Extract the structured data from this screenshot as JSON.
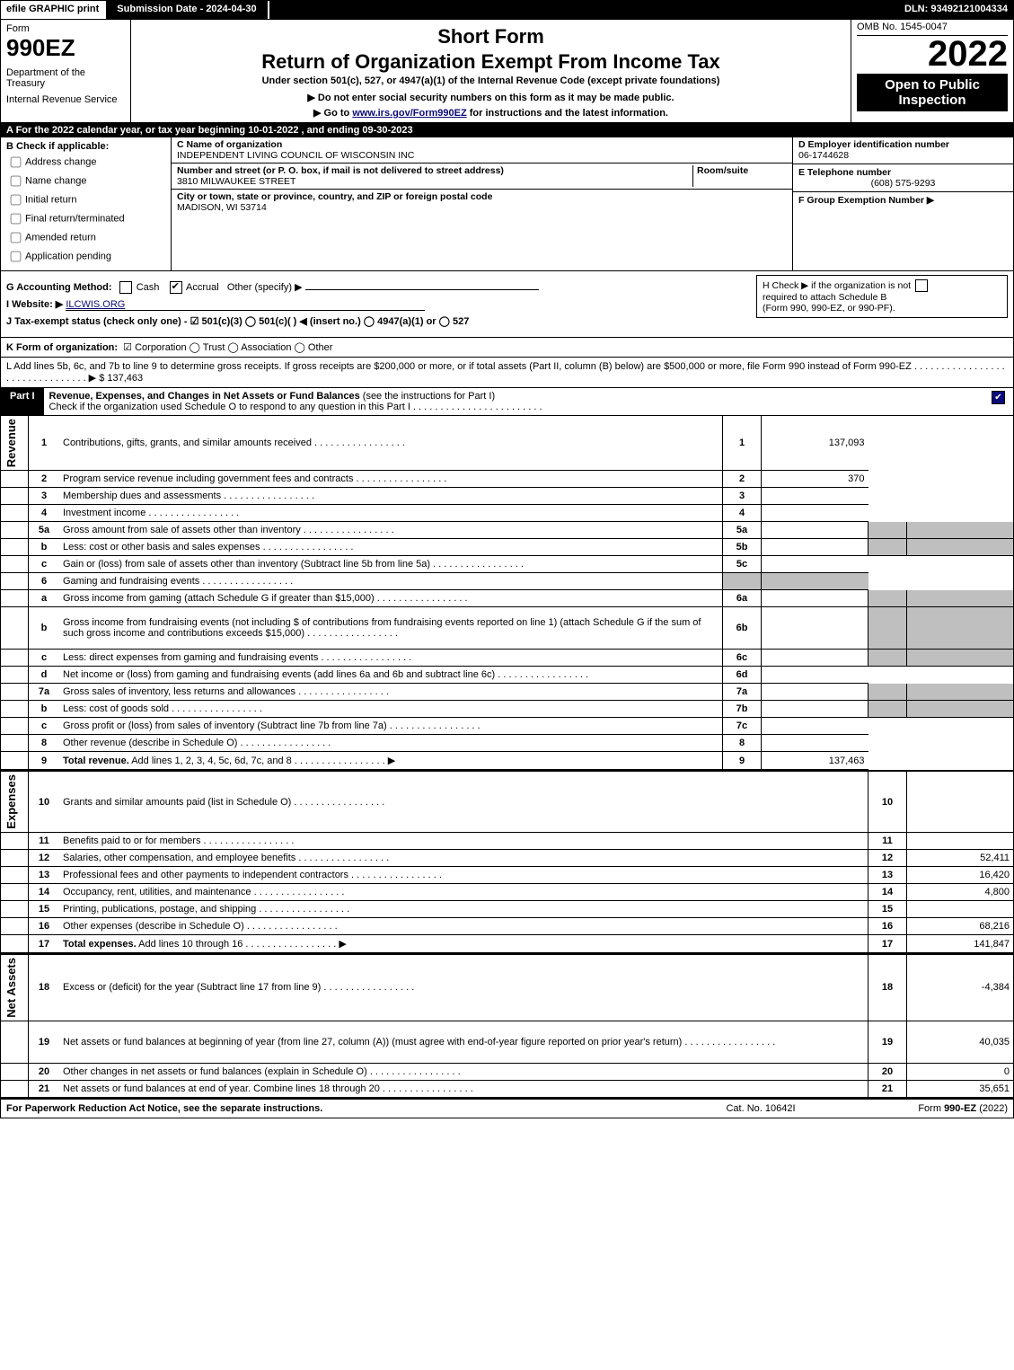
{
  "topbar": {
    "efile": "efile GRAPHIC print",
    "submission": "Submission Date - 2024-04-30",
    "dln": "DLN: 93492121004334"
  },
  "header": {
    "form_label": "Form",
    "form_number": "990EZ",
    "dept_line1": "Department of the Treasury",
    "dept_line2": "Internal Revenue Service",
    "short_form": "Short Form",
    "title": "Return of Organization Exempt From Income Tax",
    "under": "Under section 501(c), 527, or 4947(a)(1) of the Internal Revenue Code (except private foundations)",
    "warn": "▶ Do not enter social security numbers on this form as it may be made public.",
    "goto_pre": "▶ Go to ",
    "goto_link": "www.irs.gov/Form990EZ",
    "goto_post": " for instructions and the latest information.",
    "omb": "OMB No. 1545-0047",
    "year": "2022",
    "open": "Open to Public Inspection"
  },
  "section_a": "A  For the 2022 calendar year, or tax year beginning 10-01-2022 , and ending 09-30-2023",
  "b": {
    "head": "B  Check if applicable:",
    "items": [
      "Address change",
      "Name change",
      "Initial return",
      "Final return/terminated",
      "Amended return",
      "Application pending"
    ]
  },
  "c": {
    "name_label": "C Name of organization",
    "name": "INDEPENDENT LIVING COUNCIL OF WISCONSIN INC",
    "street_label": "Number and street (or P. O. box, if mail is not delivered to street address)",
    "street": "3810 MILWAUKEE STREET",
    "room_label": "Room/suite",
    "city_label": "City or town, state or province, country, and ZIP or foreign postal code",
    "city": "MADISON, WI  53714"
  },
  "d": {
    "ein_label": "D Employer identification number",
    "ein": "06-1744628",
    "phone_label": "E Telephone number",
    "phone": "(608) 575-9293",
    "group_label": "F Group Exemption Number   ▶"
  },
  "ghijk": {
    "g": "G Accounting Method:",
    "g_cash": "Cash",
    "g_accrual": "Accrual",
    "g_other": "Other (specify) ▶",
    "h_line1": "H  Check ▶       if the organization is not",
    "h_line2": "required to attach Schedule B",
    "h_line3": "(Form 990, 990-EZ, or 990-PF).",
    "i_label": "I Website: ▶",
    "i_value": "ILCWIS.ORG",
    "j": "J Tax-exempt status (check only one) -  ☑ 501(c)(3)  ◯ 501(c)(  ) ◀ (insert no.)  ◯ 4947(a)(1) or  ◯ 527",
    "j_sub": ""
  },
  "k": {
    "pre": "K Form of organization:",
    "items": "☑ Corporation   ◯ Trust   ◯ Association   ◯ Other"
  },
  "l": {
    "text": "L Add lines 5b, 6c, and 7b to line 9 to determine gross receipts. If gross receipts are $200,000 or more, or if total assets (Part II, column (B) below) are $500,000 or more, file Form 990 instead of Form 990-EZ  . . . . . . . . . . . . . . . . . . . . . . . . . . . . . . . .  ▶ $ 137,463"
  },
  "part1": {
    "tab": "Part I",
    "title_bold": "Revenue, Expenses, and Changes in Net Assets or Fund Balances",
    "title_rest": " (see the instructions for Part I)",
    "subtitle": "Check if the organization used Schedule O to respond to any question in this Part I . . . . . . . . . . . . . . . . . . . . . . . ."
  },
  "side_labels": {
    "revenue": "Revenue",
    "expenses": "Expenses",
    "netassets": "Net Assets"
  },
  "rows": [
    {
      "n": "1",
      "desc": "Contributions, gifts, grants, and similar amounts received",
      "rn": "1",
      "rv": "137,093"
    },
    {
      "n": "2",
      "desc": "Program service revenue including government fees and contracts",
      "rn": "2",
      "rv": "370"
    },
    {
      "n": "3",
      "desc": "Membership dues and assessments",
      "rn": "3",
      "rv": ""
    },
    {
      "n": "4",
      "desc": "Investment income",
      "rn": "4",
      "rv": ""
    },
    {
      "n": "5a",
      "desc": "Gross amount from sale of assets other than inventory",
      "mn": "5a",
      "mv": "",
      "grey": true
    },
    {
      "n": "b",
      "desc": "Less: cost or other basis and sales expenses",
      "mn": "5b",
      "mv": "",
      "grey": true
    },
    {
      "n": "c",
      "desc": "Gain or (loss) from sale of assets other than inventory (Subtract line 5b from line 5a)",
      "rn": "5c",
      "rv": ""
    },
    {
      "n": "6",
      "desc": "Gaming and fundraising events",
      "grey": true,
      "noright": true
    },
    {
      "n": "a",
      "desc": "Gross income from gaming (attach Schedule G if greater than $15,000)",
      "mn": "6a",
      "mv": "",
      "grey": true
    },
    {
      "n": "b",
      "desc": "Gross income from fundraising events (not including $                    of contributions from fundraising events reported on line 1) (attach Schedule G if the sum of such gross income and contributions exceeds $15,000)",
      "mn": "6b",
      "mv": "",
      "grey": true,
      "tall": true
    },
    {
      "n": "c",
      "desc": "Less: direct expenses from gaming and fundraising events",
      "mn": "6c",
      "mv": "",
      "grey": true
    },
    {
      "n": "d",
      "desc": "Net income or (loss) from gaming and fundraising events (add lines 6a and 6b and subtract line 6c)",
      "rn": "6d",
      "rv": ""
    },
    {
      "n": "7a",
      "desc": "Gross sales of inventory, less returns and allowances",
      "mn": "7a",
      "mv": "",
      "grey": true
    },
    {
      "n": "b",
      "desc": "Less: cost of goods sold",
      "mn": "7b",
      "mv": "",
      "grey": true
    },
    {
      "n": "c",
      "desc": "Gross profit or (loss) from sales of inventory (Subtract line 7b from line 7a)",
      "rn": "7c",
      "rv": ""
    },
    {
      "n": "8",
      "desc": "Other revenue (describe in Schedule O)",
      "rn": "8",
      "rv": ""
    },
    {
      "n": "9",
      "desc": "Total revenue. Add lines 1, 2, 3, 4, 5c, 6d, 7c, and 8",
      "bold": true,
      "rn": "9",
      "rv": "137,463",
      "arrow": true
    }
  ],
  "expense_rows": [
    {
      "n": "10",
      "desc": "Grants and similar amounts paid (list in Schedule O)",
      "rn": "10",
      "rv": ""
    },
    {
      "n": "11",
      "desc": "Benefits paid to or for members",
      "rn": "11",
      "rv": ""
    },
    {
      "n": "12",
      "desc": "Salaries, other compensation, and employee benefits",
      "rn": "12",
      "rv": "52,411"
    },
    {
      "n": "13",
      "desc": "Professional fees and other payments to independent contractors",
      "rn": "13",
      "rv": "16,420"
    },
    {
      "n": "14",
      "desc": "Occupancy, rent, utilities, and maintenance",
      "rn": "14",
      "rv": "4,800"
    },
    {
      "n": "15",
      "desc": "Printing, publications, postage, and shipping",
      "rn": "15",
      "rv": ""
    },
    {
      "n": "16",
      "desc": "Other expenses (describe in Schedule O)",
      "rn": "16",
      "rv": "68,216"
    },
    {
      "n": "17",
      "desc": "Total expenses. Add lines 10 through 16",
      "bold": true,
      "rn": "17",
      "rv": "141,847",
      "arrow": true
    }
  ],
  "net_rows": [
    {
      "n": "18",
      "desc": "Excess or (deficit) for the year (Subtract line 17 from line 9)",
      "rn": "18",
      "rv": "-4,384"
    },
    {
      "n": "19",
      "desc": "Net assets or fund balances at beginning of year (from line 27, column (A)) (must agree with end-of-year figure reported on prior year's return)",
      "rn": "19",
      "rv": "40,035",
      "tall": true
    },
    {
      "n": "20",
      "desc": "Other changes in net assets or fund balances (explain in Schedule O)",
      "rn": "20",
      "rv": "0"
    },
    {
      "n": "21",
      "desc": "Net assets or fund balances at end of year. Combine lines 18 through 20",
      "rn": "21",
      "rv": "35,651"
    }
  ],
  "footer": {
    "left": "For Paperwork Reduction Act Notice, see the separate instructions.",
    "mid": "Cat. No. 10642I",
    "right_pre": "Form ",
    "right_bold": "990-EZ",
    "right_post": " (2022)"
  }
}
